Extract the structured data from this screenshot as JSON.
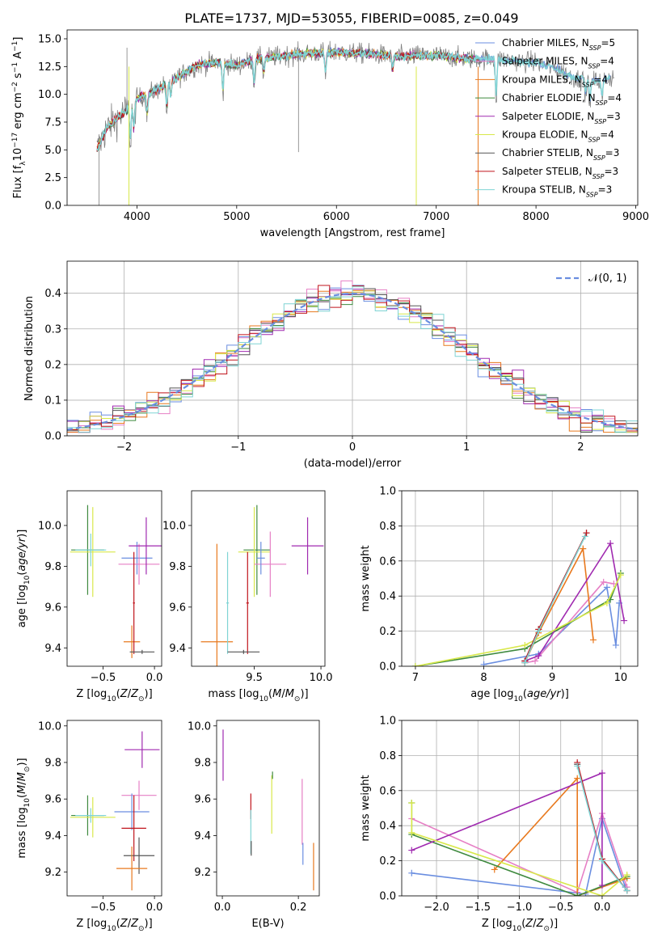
{
  "title": "PLATE=1737, MJD=53055, FIBERID=0085, z=0.049",
  "colors": {
    "Chabrier MILES": "#6a8ee0",
    "Salpeter MILES": "#e67fc5",
    "Kroupa MILES": "#e8791e",
    "Chabrier ELODIE": "#3f8a3f",
    "Salpeter ELODIE": "#a02ab0",
    "Kroupa ELODIE": "#d8e84a",
    "Chabrier STELIB": "#555555",
    "Salpeter STELIB": "#c0141c",
    "Kroupa STELIB": "#7fd4d4",
    "data": "#808080",
    "normal": "#6a8ee0"
  },
  "chart_data": [
    {
      "id": "spectrum",
      "type": "line",
      "xlabel": "wavelength [Angstrom, rest frame]",
      "ylabel": "Flux [f_λ10^-17 erg cm^-2 s^-1 A^-1]",
      "xlim": [
        3300,
        9020
      ],
      "ylim": [
        0,
        15.8
      ],
      "xticks": [
        4000,
        5000,
        6000,
        7000,
        8000,
        9000
      ],
      "yticks": [
        0.0,
        2.5,
        5.0,
        7.5,
        10.0,
        12.5,
        15.0
      ],
      "grid": false,
      "legend_position": "right",
      "legend": [
        {
          "model": "Chabrier MILES",
          "n": "5"
        },
        {
          "model": "Salpeter MILES",
          "n": "4"
        },
        {
          "model": "Kroupa MILES",
          "n": "4"
        },
        {
          "model": "Chabrier ELODIE",
          "n": "4"
        },
        {
          "model": "Salpeter ELODIE",
          "n": "3"
        },
        {
          "model": "Kroupa ELODIE",
          "n": "4"
        },
        {
          "model": "Chabrier STELIB",
          "n": "3"
        },
        {
          "model": "Salpeter STELIB",
          "n": "3"
        },
        {
          "model": "Kroupa STELIB",
          "n": "3"
        }
      ],
      "continuum": [
        [
          3600,
          5.0
        ],
        [
          3700,
          7.0
        ],
        [
          3900,
          8.6
        ],
        [
          4000,
          9.6
        ],
        [
          4200,
          10.4
        ],
        [
          4400,
          11.5
        ],
        [
          4600,
          12.6
        ],
        [
          4800,
          12.9
        ],
        [
          5000,
          12.6
        ],
        [
          5200,
          13.2
        ],
        [
          5400,
          13.4
        ],
        [
          5600,
          13.6
        ],
        [
          5800,
          13.7
        ],
        [
          6000,
          13.8
        ],
        [
          6200,
          13.7
        ],
        [
          6400,
          13.6
        ],
        [
          6600,
          13.4
        ],
        [
          6800,
          13.5
        ],
        [
          7000,
          13.5
        ],
        [
          7200,
          13.3
        ],
        [
          7400,
          13.2
        ],
        [
          7600,
          13.2
        ],
        [
          7800,
          13.0
        ],
        [
          8000,
          12.9
        ],
        [
          8200,
          12.3
        ],
        [
          8400,
          11.4
        ],
        [
          8600,
          11.2
        ],
        [
          8800,
          11.6
        ]
      ]
    },
    {
      "id": "residuals",
      "type": "line",
      "xlabel": "(data-model)/error",
      "ylabel": "Normed distribution",
      "xlim": [
        -2.5,
        2.5
      ],
      "ylim": [
        0,
        0.49
      ],
      "xticks": [
        -2,
        -1,
        0,
        1,
        2
      ],
      "yticks": [
        0.0,
        0.1,
        0.2,
        0.3,
        0.4
      ],
      "grid": true,
      "legend_position": "top-right",
      "legend_label": "N(0,1)",
      "normal_mean": 0,
      "normal_sigma": 1
    },
    {
      "id": "age_vs_Z",
      "type": "scatter",
      "xlabel": "Z [log10(Z/Z☉)]",
      "ylabel": "age [log10(age/yr)]",
      "xlim": [
        -0.85,
        0.07
      ],
      "ylim": [
        9.31,
        10.17
      ],
      "xticks": [
        -0.5,
        0.0
      ],
      "yticks": [
        9.4,
        9.6,
        9.8,
        10.0
      ],
      "points": [
        {
          "model": "Chabrier ELODIE",
          "x": -0.65,
          "y": 9.88,
          "xerr": 0.16,
          "yerr": 0.22
        },
        {
          "model": "Kroupa ELODIE",
          "x": -0.6,
          "y": 9.87,
          "xerr": 0.22,
          "yerr": 0.22
        },
        {
          "model": "Kroupa STELIB",
          "x": -0.62,
          "y": 9.88,
          "xerr": 0.15,
          "yerr": 0.08
        },
        {
          "model": "Chabrier MILES",
          "x": -0.17,
          "y": 9.84,
          "xerr": 0.15,
          "yerr": 0.08
        },
        {
          "model": "Salpeter MILES",
          "x": -0.15,
          "y": 9.81,
          "xerr": 0.2,
          "yerr": 0.1
        },
        {
          "model": "Salpeter ELODIE",
          "x": -0.08,
          "y": 9.9,
          "xerr": 0.17,
          "yerr": 0.14
        },
        {
          "model": "Kroupa MILES",
          "x": -0.22,
          "y": 9.43,
          "xerr": 0.08,
          "yerr": 0.08
        },
        {
          "model": "Salpeter STELIB",
          "x": -0.2,
          "y": 9.62,
          "xerr": 0.01,
          "yerr": 0.25
        },
        {
          "model": "Chabrier STELIB",
          "x": -0.12,
          "y": 9.38,
          "xerr": 0.12,
          "yerr": 0.01
        }
      ]
    },
    {
      "id": "age_vs_mass",
      "type": "scatter",
      "xlabel": "mass [log10(M/M☉)]",
      "ylabel": "",
      "xlim": [
        9.03,
        10.03
      ],
      "ylim": [
        9.31,
        10.17
      ],
      "xticks": [
        9.5,
        10.0
      ],
      "yticks": [
        9.4,
        9.6,
        9.8,
        10.0
      ],
      "points": [
        {
          "model": "Chabrier ELODIE",
          "x": 9.52,
          "y": 9.88,
          "xerr": 0.1,
          "yerr": 0.22
        },
        {
          "model": "Kroupa ELODIE",
          "x": 9.5,
          "y": 9.87,
          "xerr": 0.12,
          "yerr": 0.22
        },
        {
          "model": "Salpeter ELODIE",
          "x": 9.9,
          "y": 9.9,
          "xerr": 0.12,
          "yerr": 0.14
        },
        {
          "model": "Salpeter MILES",
          "x": 9.62,
          "y": 9.81,
          "xerr": 0.12,
          "yerr": 0.16
        },
        {
          "model": "Chabrier MILES",
          "x": 9.55,
          "y": 9.84,
          "xerr": 0.03,
          "yerr": 0.08
        },
        {
          "model": "Kroupa MILES",
          "x": 9.22,
          "y": 9.43,
          "xerr": 0.12,
          "yerr": 0.48
        },
        {
          "model": "Kroupa STELIB",
          "x": 9.3,
          "y": 9.62,
          "xerr": 0.01,
          "yerr": 0.25
        },
        {
          "model": "Salpeter STELIB",
          "x": 9.45,
          "y": 9.62,
          "xerr": 0.01,
          "yerr": 0.25
        },
        {
          "model": "Chabrier STELIB",
          "x": 9.42,
          "y": 9.38,
          "xerr": 0.12,
          "yerr": 0.01
        }
      ]
    },
    {
      "id": "weight_vs_age",
      "type": "line",
      "xlabel": "age [log10(age/yr)]",
      "ylabel": "mass weight",
      "xlim": [
        6.8,
        10.25
      ],
      "ylim": [
        0,
        1.0
      ],
      "xticks": [
        7,
        8,
        9,
        10
      ],
      "yticks": [
        0.0,
        0.2,
        0.4,
        0.6,
        0.8,
        1.0
      ],
      "grid": true,
      "series": [
        {
          "model": "Chabrier MILES",
          "points": [
            [
              8.0,
              0.01
            ],
            [
              8.8,
              0.07
            ],
            [
              9.8,
              0.45
            ],
            [
              9.93,
              0.12
            ],
            [
              9.98,
              0.36
            ]
          ]
        },
        {
          "model": "Salpeter MILES",
          "points": [
            [
              8.6,
              0.02
            ],
            [
              8.75,
              0.03
            ],
            [
              9.75,
              0.48
            ],
            [
              9.9,
              0.47
            ]
          ]
        },
        {
          "model": "Kroupa MILES",
          "points": [
            [
              8.6,
              0.02
            ],
            [
              8.8,
              0.19
            ],
            [
              9.45,
              0.67
            ],
            [
              9.6,
              0.15
            ]
          ]
        },
        {
          "model": "Chabrier ELODIE",
          "points": [
            [
              7.0,
              0.0
            ],
            [
              8.6,
              0.1
            ],
            [
              9.85,
              0.38
            ],
            [
              10.0,
              0.53
            ]
          ]
        },
        {
          "model": "Salpeter ELODIE",
          "points": [
            [
              8.6,
              0.03
            ],
            [
              8.8,
              0.06
            ],
            [
              9.85,
              0.7
            ],
            [
              10.05,
              0.26
            ]
          ]
        },
        {
          "model": "Kroupa ELODIE",
          "points": [
            [
              7.0,
              0.0
            ],
            [
              8.6,
              0.12
            ],
            [
              9.8,
              0.36
            ],
            [
              10.0,
              0.52
            ]
          ]
        },
        {
          "model": "Chabrier STELIB",
          "points": [
            [
              8.6,
              0.03
            ],
            [
              8.8,
              0.21
            ],
            [
              9.5,
              0.76
            ]
          ]
        },
        {
          "model": "Salpeter STELIB",
          "points": [
            [
              8.6,
              0.03
            ],
            [
              8.8,
              0.21
            ],
            [
              9.5,
              0.76
            ]
          ]
        },
        {
          "model": "Kroupa STELIB",
          "points": [
            [
              8.6,
              0.02
            ],
            [
              8.8,
              0.2
            ],
            [
              9.48,
              0.74
            ]
          ]
        }
      ]
    },
    {
      "id": "mass_vs_Z",
      "type": "scatter",
      "xlabel": "Z [log10(Z/Z☉)]",
      "ylabel": "mass [log10(M/M☉)]",
      "xlim": [
        -0.85,
        0.07
      ],
      "ylim": [
        9.07,
        10.03
      ],
      "xticks": [
        -0.5,
        0.0
      ],
      "yticks": [
        9.2,
        9.4,
        9.6,
        9.8,
        10.0
      ],
      "points": [
        {
          "model": "Chabrier ELODIE",
          "x": -0.65,
          "y": 9.51,
          "xerr": 0.16,
          "yerr": 0.11
        },
        {
          "model": "Kroupa ELODIE",
          "x": -0.6,
          "y": 9.5,
          "xerr": 0.22,
          "yerr": 0.11
        },
        {
          "model": "Kroupa STELIB",
          "x": -0.62,
          "y": 9.51,
          "xerr": 0.15,
          "yerr": 0.04
        },
        {
          "model": "Salpeter ELODIE",
          "x": -0.12,
          "y": 9.87,
          "xerr": 0.17,
          "yerr": 0.1
        },
        {
          "model": "Salpeter MILES",
          "x": -0.15,
          "y": 9.62,
          "xerr": 0.17,
          "yerr": 0.08
        },
        {
          "model": "Chabrier MILES",
          "x": -0.22,
          "y": 9.53,
          "xerr": 0.17,
          "yerr": 0.1
        },
        {
          "model": "Salpeter STELIB",
          "x": -0.2,
          "y": 9.44,
          "xerr": 0.12,
          "yerr": 0.18
        },
        {
          "model": "Chabrier STELIB",
          "x": -0.15,
          "y": 9.29,
          "xerr": 0.15,
          "yerr": 0.1
        },
        {
          "model": "Kroupa MILES",
          "x": -0.22,
          "y": 9.22,
          "xerr": 0.15,
          "yerr": 0.12
        }
      ]
    },
    {
      "id": "mass_vs_EBV",
      "type": "scatter",
      "xlabel": "E(B-V)",
      "ylabel": "",
      "xlim": [
        -0.015,
        0.255
      ],
      "ylim": [
        9.07,
        10.03
      ],
      "xticks": [
        0.0,
        0.2
      ],
      "yticks": [
        9.2,
        9.4,
        9.6,
        9.8,
        10.0
      ],
      "points": [
        {
          "model": "Salpeter ELODIE",
          "x": 0.002,
          "y": 9.84,
          "xerr": 0,
          "yerr": 0.14
        },
        {
          "model": "Salpeter STELIB",
          "x": 0.075,
          "y": 9.56,
          "xerr": 0,
          "yerr": 0.07
        },
        {
          "model": "Kroupa STELIB",
          "x": 0.075,
          "y": 9.42,
          "xerr": 0,
          "yerr": 0.12
        },
        {
          "model": "Chabrier STELIB",
          "x": 0.076,
          "y": 9.33,
          "xerr": 0,
          "yerr": 0.04
        },
        {
          "model": "Kroupa ELODIE",
          "x": 0.13,
          "y": 9.57,
          "xerr": 0,
          "yerr": 0.16
        },
        {
          "model": "Chabrier ELODIE",
          "x": 0.132,
          "y": 9.73,
          "xerr": 0,
          "yerr": 0.02
        },
        {
          "model": "Salpeter MILES",
          "x": 0.21,
          "y": 9.53,
          "xerr": 0,
          "yerr": 0.18
        },
        {
          "model": "Chabrier MILES",
          "x": 0.212,
          "y": 9.3,
          "xerr": 0,
          "yerr": 0.06
        },
        {
          "model": "Kroupa MILES",
          "x": 0.24,
          "y": 9.23,
          "xerr": 0,
          "yerr": 0.13
        }
      ]
    },
    {
      "id": "weight_vs_Z",
      "type": "line",
      "xlabel": "Z [log10(Z/Z☉)]",
      "ylabel": "mass weight",
      "xlim": [
        -2.42,
        0.43
      ],
      "ylim": [
        0,
        1.0
      ],
      "xticks": [
        -2.0,
        -1.5,
        -1.0,
        -0.5,
        0.0
      ],
      "yticks": [
        0.0,
        0.2,
        0.4,
        0.6,
        0.8,
        1.0
      ],
      "grid": true,
      "series": [
        {
          "model": "Chabrier MILES",
          "points": [
            [
              -2.3,
              0.13
            ],
            [
              -0.2,
              0.01
            ],
            [
              0.0,
              0.44
            ],
            [
              0.28,
              0.05
            ]
          ]
        },
        {
          "model": "Salpeter MILES",
          "points": [
            [
              -2.3,
              0.44
            ],
            [
              -0.3,
              0.02
            ],
            [
              0.0,
              0.47
            ],
            [
              0.3,
              0.05
            ]
          ]
        },
        {
          "model": "Kroupa MILES",
          "points": [
            [
              -1.3,
              0.15
            ],
            [
              -0.3,
              0.67
            ],
            [
              -0.3,
              0.0
            ],
            [
              0.3,
              0.1
            ]
          ]
        },
        {
          "model": "Chabrier ELODIE",
          "points": [
            [
              -2.3,
              0.53
            ],
            [
              -2.3,
              0.35
            ],
            [
              -0.3,
              0.0
            ],
            [
              0.3,
              0.11
            ]
          ]
        },
        {
          "model": "Salpeter ELODIE",
          "points": [
            [
              -2.3,
              0.26
            ],
            [
              0.0,
              0.7
            ],
            [
              0.0,
              0.06
            ]
          ]
        },
        {
          "model": "Kroupa ELODIE",
          "points": [
            [
              -2.3,
              0.53
            ],
            [
              -2.3,
              0.36
            ],
            [
              0.0,
              0.0
            ],
            [
              0.3,
              0.12
            ]
          ]
        },
        {
          "model": "Chabrier STELIB",
          "points": [
            [
              -0.3,
              0.75
            ],
            [
              0.0,
              0.21
            ],
            [
              0.3,
              0.03
            ]
          ]
        },
        {
          "model": "Salpeter STELIB",
          "points": [
            [
              -0.3,
              0.76
            ],
            [
              0.0,
              0.21
            ],
            [
              0.3,
              0.03
            ]
          ]
        },
        {
          "model": "Kroupa STELIB",
          "points": [
            [
              -0.3,
              0.74
            ],
            [
              0.0,
              0.2
            ],
            [
              0.3,
              0.03
            ]
          ]
        }
      ]
    }
  ]
}
